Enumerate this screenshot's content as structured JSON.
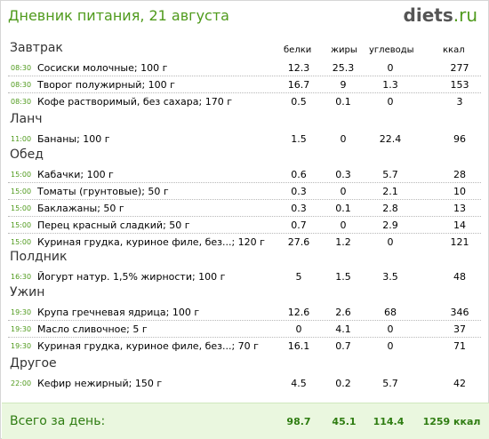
{
  "header": {
    "title": "Дневник питания, 21 августа",
    "logo_part1": "diets",
    "logo_part2": ".ru"
  },
  "columns": {
    "protein": "белки",
    "fat": "жиры",
    "carbs": "углеводы",
    "kcal": "ккал"
  },
  "meals": [
    {
      "name": "Завтрак",
      "items": [
        {
          "time": "08:30",
          "food": "Сосиски молочные; 100 г",
          "protein": "12.3",
          "fat": "25.3",
          "carbs": "0",
          "kcal": "277"
        },
        {
          "time": "08:30",
          "food": "Творог полужирный; 100 г",
          "protein": "16.7",
          "fat": "9",
          "carbs": "1.3",
          "kcal": "153"
        },
        {
          "time": "08:30",
          "food": "Кофе растворимый, без сахара; 170 г",
          "protein": "0.5",
          "fat": "0.1",
          "carbs": "0",
          "kcal": "3"
        }
      ]
    },
    {
      "name": "Ланч",
      "items": [
        {
          "time": "11:00",
          "food": "Бананы; 100 г",
          "protein": "1.5",
          "fat": "0",
          "carbs": "22.4",
          "kcal": "96"
        }
      ]
    },
    {
      "name": "Обед",
      "items": [
        {
          "time": "15:00",
          "food": "Кабачки; 100 г",
          "protein": "0.6",
          "fat": "0.3",
          "carbs": "5.7",
          "kcal": "28"
        },
        {
          "time": "15:00",
          "food": "Томаты (грунтовые); 50 г",
          "protein": "0.3",
          "fat": "0",
          "carbs": "2.1",
          "kcal": "10"
        },
        {
          "time": "15:00",
          "food": "Баклажаны; 50 г",
          "protein": "0.3",
          "fat": "0.1",
          "carbs": "2.8",
          "kcal": "13"
        },
        {
          "time": "15:00",
          "food": "Перец красный сладкий; 50 г",
          "protein": "0.7",
          "fat": "0",
          "carbs": "2.9",
          "kcal": "14"
        },
        {
          "time": "15:00",
          "food": "Куриная грудка, куриное филе, без...; 120 г",
          "protein": "27.6",
          "fat": "1.2",
          "carbs": "0",
          "kcal": "121"
        }
      ]
    },
    {
      "name": "Полдник",
      "items": [
        {
          "time": "16:30",
          "food": "Йогурт натур. 1,5% жирности; 100 г",
          "protein": "5",
          "fat": "1.5",
          "carbs": "3.5",
          "kcal": "48"
        }
      ]
    },
    {
      "name": "Ужин",
      "items": [
        {
          "time": "19:30",
          "food": "Крупа гречневая ядрица; 100 г",
          "protein": "12.6",
          "fat": "2.6",
          "carbs": "68",
          "kcal": "346"
        },
        {
          "time": "19:30",
          "food": "Масло сливочное; 5 г",
          "protein": "0",
          "fat": "4.1",
          "carbs": "0",
          "kcal": "37"
        },
        {
          "time": "19:30",
          "food": "Куриная грудка, куриное филе, без...; 70 г",
          "protein": "16.1",
          "fat": "0.7",
          "carbs": "0",
          "kcal": "71"
        }
      ]
    },
    {
      "name": "Другое",
      "items": [
        {
          "time": "22:00",
          "food": "Кефир нежирный; 150 г",
          "protein": "4.5",
          "fat": "0.2",
          "carbs": "5.7",
          "kcal": "42"
        }
      ]
    }
  ],
  "totals": {
    "label": "Всего за день:",
    "protein": "98.7",
    "fat": "45.1",
    "carbs": "114.4",
    "kcal": "1259 ккал"
  },
  "colors": {
    "accent": "#4f9a1c",
    "footer_bg": "#eaf7df",
    "footer_text": "#2f7d12"
  }
}
